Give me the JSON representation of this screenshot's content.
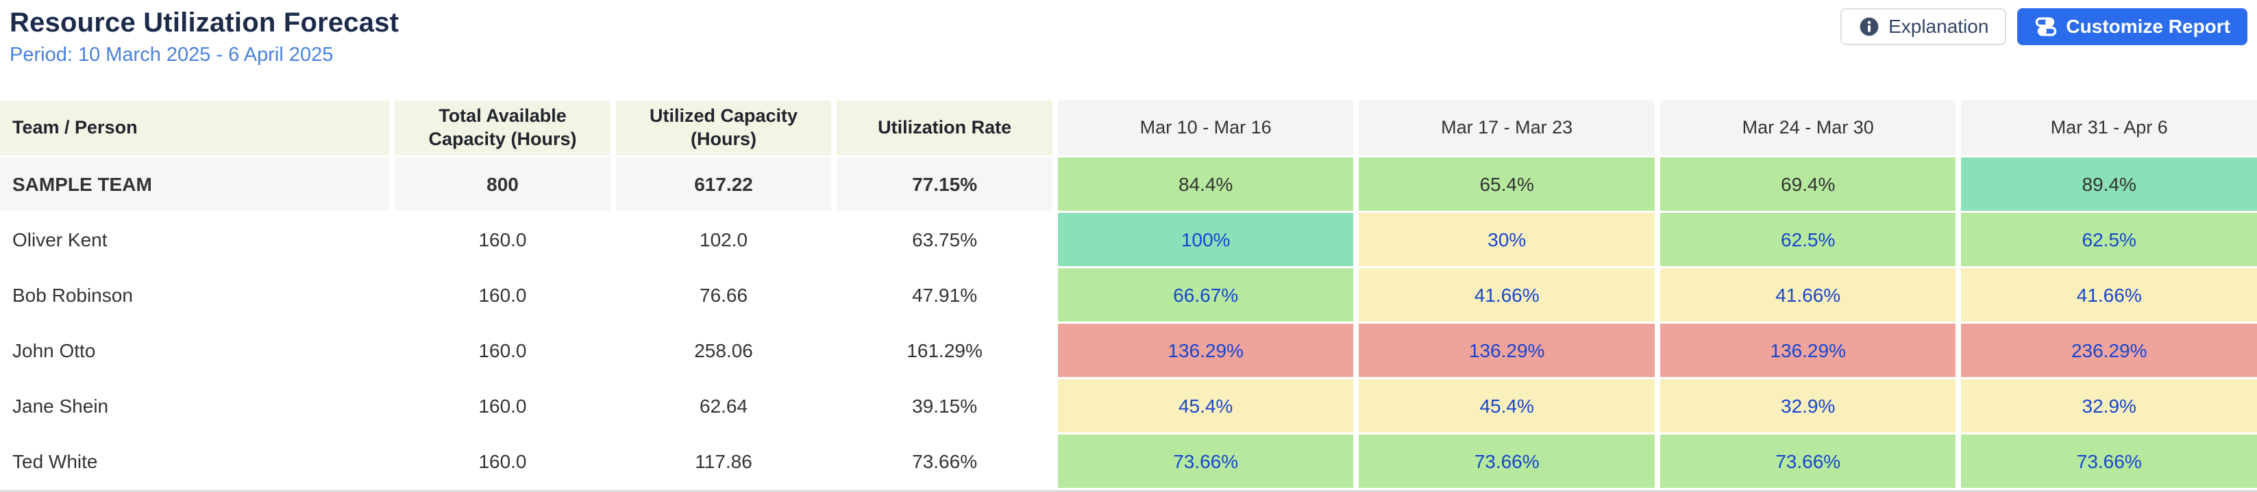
{
  "header": {
    "title": "Resource Utilization Forecast",
    "period": "Period: 10 March 2025 - 6 April 2025",
    "explanation_button": "Explanation",
    "customize_button": "Customize Report"
  },
  "colors": {
    "accent_blue": "#2B6CEC",
    "title": "#1C2B4A",
    "period_text": "#4A82DD",
    "link_text": "#1746D1",
    "dark_text": "#333333",
    "header_left_bg": "#F3F4E4",
    "header_week_bg": "#F4F4F4",
    "team_row_bg": "#F6F6F6",
    "levels": {
      "green": "#B6E99E",
      "teal": "#8AE0B8",
      "yellow": "#FAF0BC",
      "red": "#EEA39D"
    }
  },
  "table": {
    "columns": [
      "Team / Person",
      "Total Available Capacity (Hours)",
      "Utilized Capacity (Hours)",
      "Utilization Rate"
    ],
    "weeks": [
      "Mar 10 - Mar 16",
      "Mar 17 - Mar 23",
      "Mar 24 - Mar 30",
      "Mar 31 - Apr 6"
    ],
    "rows": [
      {
        "name": "SAMPLE TEAM",
        "type": "team",
        "available": "800",
        "utilized": "617.22",
        "rate": "77.15%",
        "weekly": [
          {
            "value": "84.4%",
            "level": "green"
          },
          {
            "value": "65.4%",
            "level": "green"
          },
          {
            "value": "69.4%",
            "level": "green"
          },
          {
            "value": "89.4%",
            "level": "teal"
          }
        ]
      },
      {
        "name": "Oliver Kent",
        "type": "person",
        "available": "160.0",
        "utilized": "102.0",
        "rate": "63.75%",
        "weekly": [
          {
            "value": "100%",
            "level": "teal"
          },
          {
            "value": "30%",
            "level": "yellow"
          },
          {
            "value": "62.5%",
            "level": "green"
          },
          {
            "value": "62.5%",
            "level": "green"
          }
        ]
      },
      {
        "name": "Bob Robinson",
        "type": "person",
        "available": "160.0",
        "utilized": "76.66",
        "rate": "47.91%",
        "weekly": [
          {
            "value": "66.67%",
            "level": "green"
          },
          {
            "value": "41.66%",
            "level": "yellow"
          },
          {
            "value": "41.66%",
            "level": "yellow"
          },
          {
            "value": "41.66%",
            "level": "yellow"
          }
        ]
      },
      {
        "name": "John Otto",
        "type": "person",
        "available": "160.0",
        "utilized": "258.06",
        "rate": "161.29%",
        "weekly": [
          {
            "value": "136.29%",
            "level": "red"
          },
          {
            "value": "136.29%",
            "level": "red"
          },
          {
            "value": "136.29%",
            "level": "red"
          },
          {
            "value": "236.29%",
            "level": "red"
          }
        ]
      },
      {
        "name": "Jane Shein",
        "type": "person",
        "available": "160.0",
        "utilized": "62.64",
        "rate": "39.15%",
        "weekly": [
          {
            "value": "45.4%",
            "level": "yellow"
          },
          {
            "value": "45.4%",
            "level": "yellow"
          },
          {
            "value": "32.9%",
            "level": "yellow"
          },
          {
            "value": "32.9%",
            "level": "yellow"
          }
        ]
      },
      {
        "name": "Ted White",
        "type": "person",
        "available": "160.0",
        "utilized": "117.86",
        "rate": "73.66%",
        "weekly": [
          {
            "value": "73.66%",
            "level": "green"
          },
          {
            "value": "73.66%",
            "level": "green"
          },
          {
            "value": "73.66%",
            "level": "green"
          },
          {
            "value": "73.66%",
            "level": "green"
          }
        ]
      }
    ]
  }
}
